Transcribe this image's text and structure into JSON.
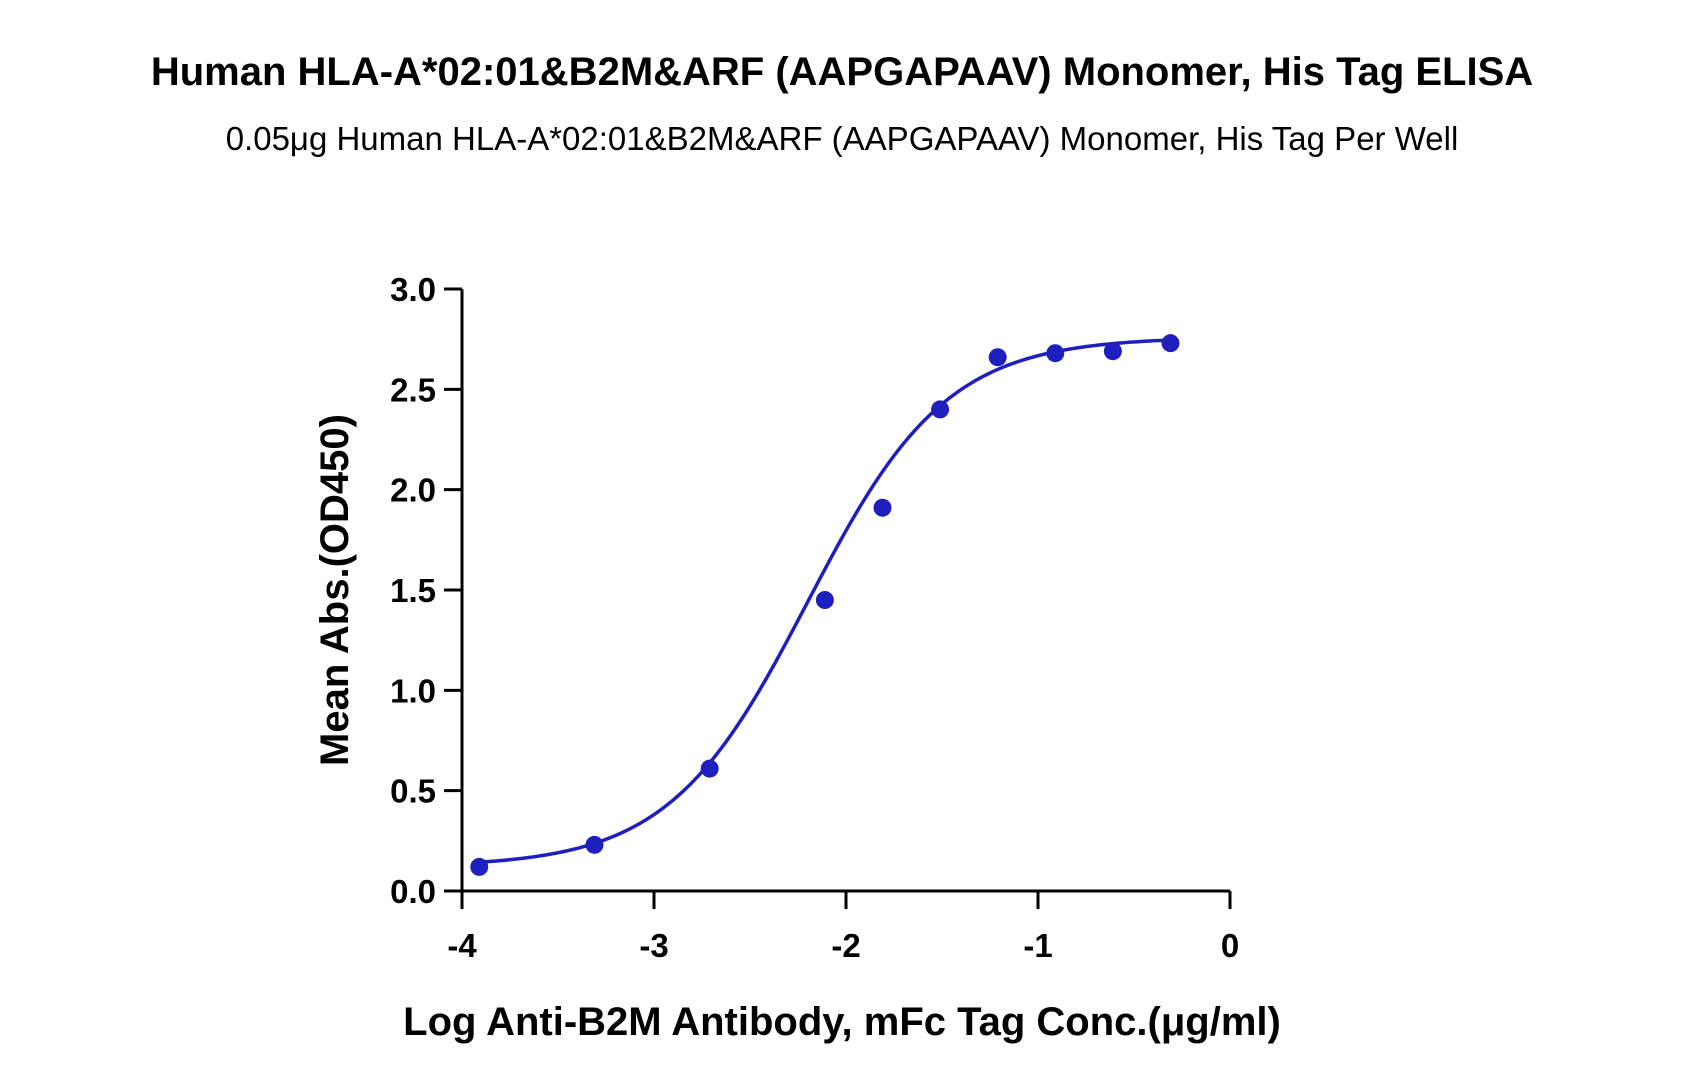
{
  "chart_data": {
    "type": "scatter",
    "title": "Human HLA-A*02:01&B2M&ARF (AAPGAPAAV) Monomer, His Tag ELISA",
    "subtitle": "0.05μg Human HLA-A*02:01&B2M&ARF (AAPGAPAAV) Monomer, His Tag Per Well",
    "xlabel": "Log Anti-B2M Antibody, mFc Tag Conc.(μg/ml)",
    "ylabel": "Mean Abs.(OD450)",
    "xlim": [
      -4,
      0
    ],
    "ylim": [
      0,
      3.0
    ],
    "x_ticks": [
      "-4",
      "-3",
      "-2",
      "-1",
      "0"
    ],
    "y_ticks": [
      "0.0",
      "0.5",
      "1.0",
      "1.5",
      "2.0",
      "2.5",
      "3.0"
    ],
    "grid": false,
    "color": "#1f1fbf",
    "series": [
      {
        "x": [
          -3.91,
          -3.31,
          -2.71,
          -2.11,
          -1.81,
          -1.51,
          -1.21,
          -0.91,
          -0.61,
          -0.31
        ],
        "y": [
          0.12,
          0.23,
          0.61,
          1.45,
          1.91,
          2.4,
          2.66,
          2.68,
          2.69,
          2.73
        ]
      }
    ],
    "fit_curve": {
      "type": "4PL",
      "bottom": 0.12,
      "top": 2.76,
      "log_ec50": -2.2,
      "hill_slope": 1.2
    }
  }
}
